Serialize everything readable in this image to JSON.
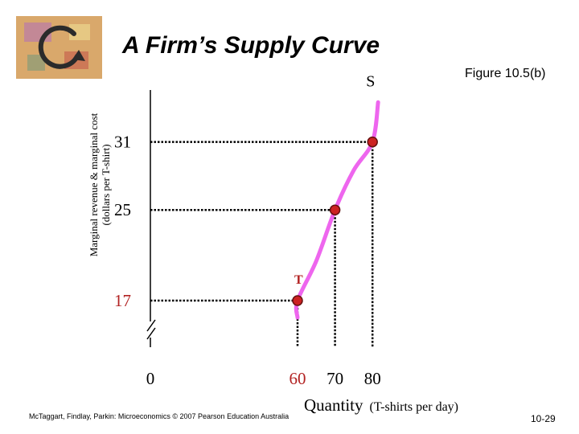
{
  "slide": {
    "title": "A Firm’s Supply Curve",
    "figure_label": "Figure 10.5(b)",
    "footer": "McTaggart, Findlay, Parkin: Microeconomics © 2007 Pearson Education Australia",
    "page_number": "10-29"
  },
  "colors": {
    "curve": "#ee66ee",
    "point_fill": "#cc2222",
    "point_stroke": "#661111",
    "label_T": "#b22222",
    "logo_bg": "#d9a86b"
  },
  "chart_data": {
    "type": "line",
    "title": "",
    "ylabel_line1": "Marginal revenue & marginal cost",
    "ylabel_line2": "(dollars per T-shirt)",
    "xlabel_main": "Quantity",
    "xlabel_unit": "(T-shirts per day)",
    "axis_break": true,
    "grid": false,
    "x_ticks": [
      {
        "value": 0,
        "label": "0",
        "color": "#000000"
      },
      {
        "value": 60,
        "label": "60",
        "color": "#b22222"
      },
      {
        "value": 70,
        "label": "70",
        "color": "#000000"
      },
      {
        "value": 80,
        "label": "80",
        "color": "#000000"
      }
    ],
    "y_ticks": [
      {
        "value": 17,
        "label": "17",
        "color": "#b22222"
      },
      {
        "value": 25,
        "label": "25",
        "color": "#000000"
      },
      {
        "value": 31,
        "label": "31",
        "color": "#000000"
      }
    ],
    "series": [
      {
        "name": "S",
        "curve": [
          [
            60,
            15.5
          ],
          [
            60,
            17
          ],
          [
            65,
            20.5
          ],
          [
            70,
            25
          ],
          [
            75,
            28.5
          ],
          [
            80,
            31
          ],
          [
            81.5,
            34.5
          ]
        ],
        "points": [
          {
            "x": 60,
            "y": 17,
            "label": "T"
          },
          {
            "x": 70,
            "y": 25,
            "label": ""
          },
          {
            "x": 80,
            "y": 31,
            "label": ""
          }
        ]
      }
    ]
  }
}
